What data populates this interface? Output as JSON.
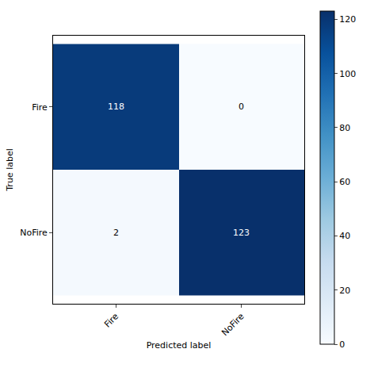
{
  "chart_data": {
    "type": "heatmap",
    "x": [
      "Fire",
      "NoFire"
    ],
    "y": [
      "Fire",
      "NoFire"
    ],
    "cells": [
      [
        118,
        0
      ],
      [
        2,
        123
      ]
    ],
    "x_label": "Predicted label",
    "y_label": "True label",
    "color": "Blues",
    "colorbar_range": [
      0,
      123
    ],
    "colorbar_ticks": [
      0,
      20,
      40,
      60,
      80,
      100,
      120
    ],
    "data_labels": true
  }
}
